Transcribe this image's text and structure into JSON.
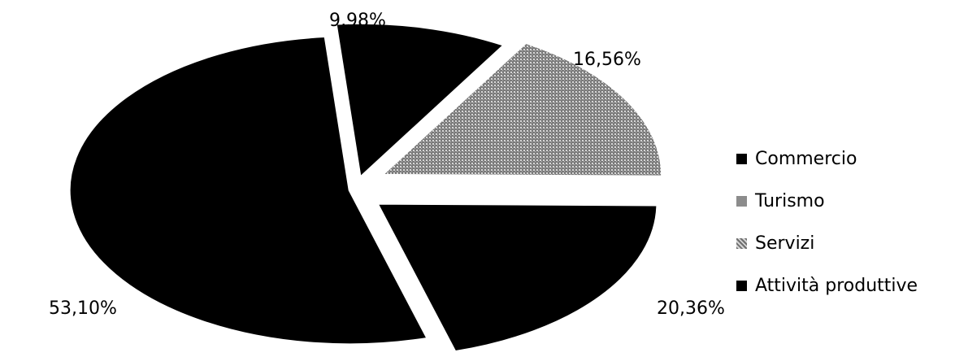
{
  "chart_data": {
    "type": "pie",
    "categories": [
      "Commercio",
      "Turismo",
      "Servizi",
      "Attività produttive"
    ],
    "values": [
      9.98,
      16.56,
      20.36,
      53.1
    ],
    "labels": [
      "9,98%",
      "16,56%",
      "20,36%",
      "53,10%"
    ],
    "colors": [
      "#000000",
      "#8c8c8c",
      "#000000",
      "#000000"
    ],
    "exploded": true,
    "perspective": "3d",
    "legend_position": "right",
    "title": ""
  }
}
